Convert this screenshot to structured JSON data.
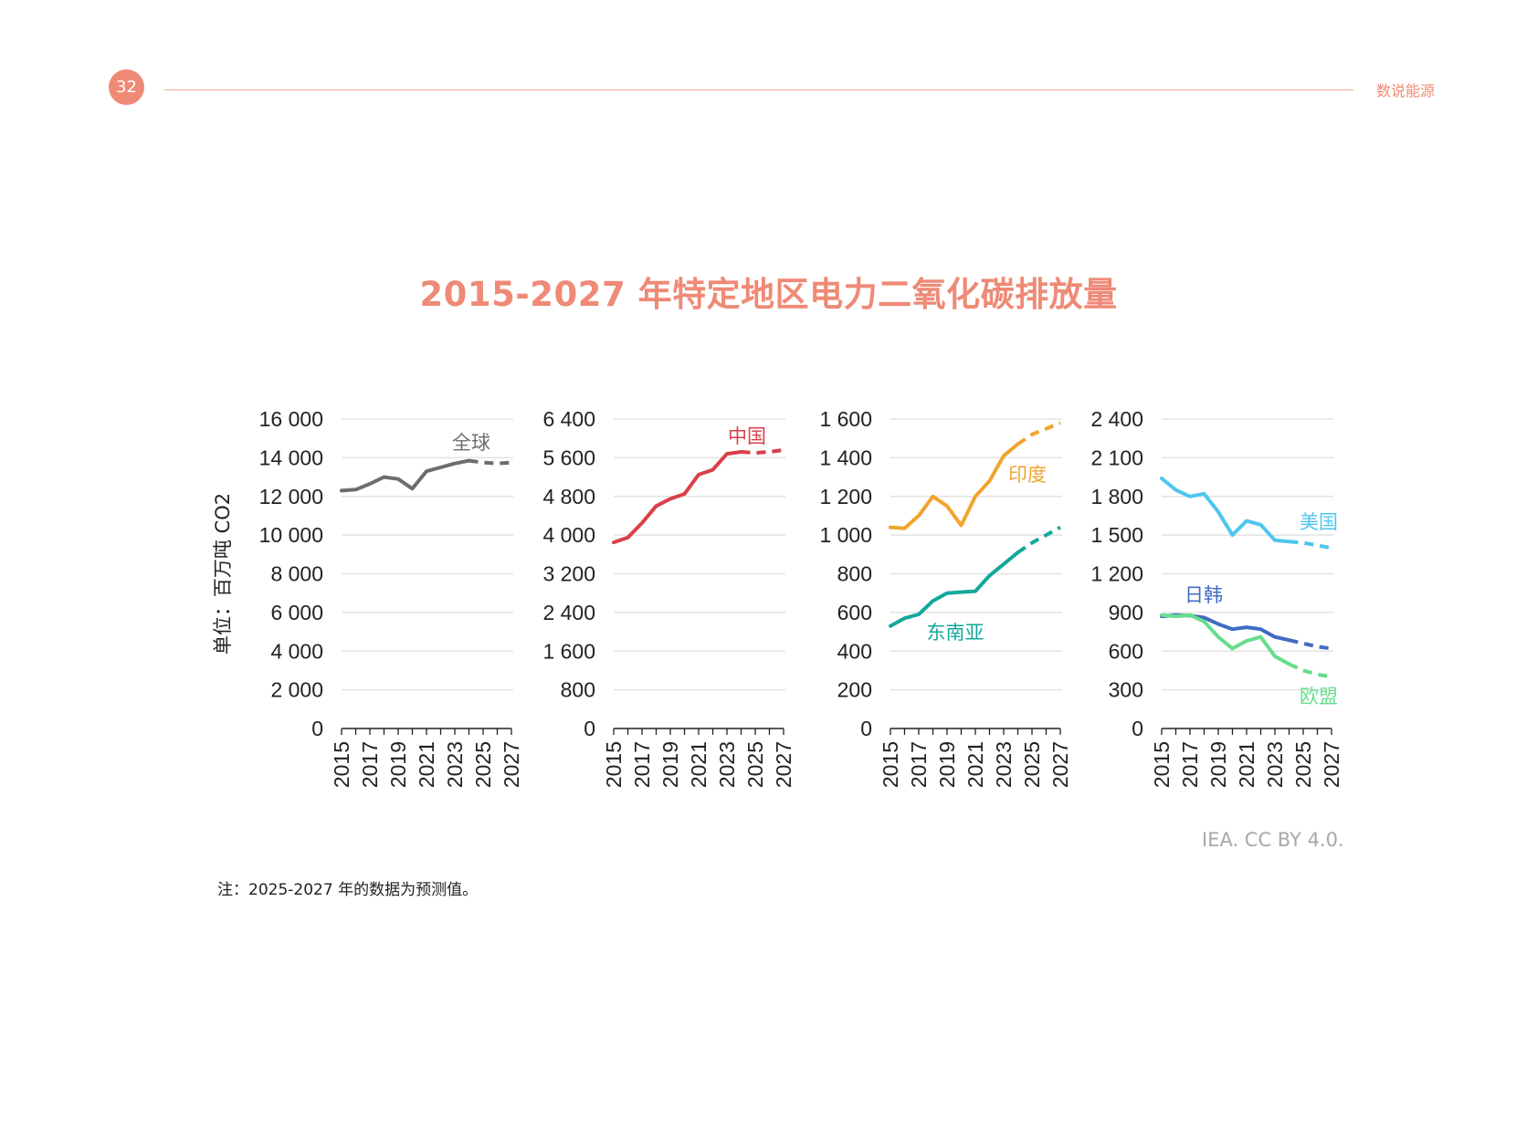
{
  "header": {
    "page_number": "32",
    "section": "数说能源"
  },
  "title": "2015-2027 年特定地区电力二氧化碳排放量",
  "credit": "IEA. CC BY 4.0.",
  "footnote": "注：2025-2027 年的数据为预测值。",
  "colors": {
    "accent": "#ee8a76",
    "global": "#6d6d6d",
    "china": "#d9404a",
    "india": "#f0a42c",
    "sea": "#13a89a",
    "usa": "#4fc6ee",
    "jpkr": "#3f6cc4",
    "eu": "#66de8c"
  },
  "chart_data": [
    {
      "type": "line",
      "ylabel": "单位：百万吨 CO2",
      "ylim": [
        0,
        16000
      ],
      "yticks": [
        0,
        2000,
        4000,
        6000,
        8000,
        10000,
        12000,
        14000,
        16000
      ],
      "ytick_labels": [
        "0",
        "2 000",
        "4 000",
        "6 000",
        "8 000",
        "10 000",
        "12 000",
        "14 000",
        "16 000"
      ],
      "x": [
        2015,
        2016,
        2017,
        2018,
        2019,
        2020,
        2021,
        2022,
        2023,
        2024,
        2025,
        2026,
        2027
      ],
      "xtick_labels": [
        "2015",
        "2017",
        "2019",
        "2021",
        "2023",
        "2025",
        "2027"
      ],
      "grid": true,
      "series": [
        {
          "name": "全球",
          "color": "#6d6d6d",
          "values": [
            12300,
            12350,
            12650,
            13000,
            12900,
            12400,
            13300,
            13500,
            13700,
            13850,
            13750,
            13700,
            13750
          ]
        }
      ]
    },
    {
      "type": "line",
      "ylim": [
        0,
        6400
      ],
      "yticks": [
        0,
        800,
        1600,
        2400,
        3200,
        4000,
        4800,
        5600,
        6400
      ],
      "ytick_labels": [
        "0",
        "800",
        "1 600",
        "2 400",
        "3 200",
        "4 000",
        "4 800",
        "5 600",
        "6 400"
      ],
      "x": [
        2015,
        2016,
        2017,
        2018,
        2019,
        2020,
        2021,
        2022,
        2023,
        2024,
        2025,
        2026,
        2027
      ],
      "xtick_labels": [
        "2015",
        "2017",
        "2019",
        "2021",
        "2023",
        "2025",
        "2027"
      ],
      "grid": true,
      "series": [
        {
          "name": "中国",
          "color": "#d9404a",
          "values": [
            3850,
            3950,
            4250,
            4600,
            4750,
            4850,
            5250,
            5350,
            5680,
            5720,
            5700,
            5720,
            5760
          ]
        }
      ]
    },
    {
      "type": "line",
      "ylim": [
        0,
        1600
      ],
      "yticks": [
        0,
        200,
        400,
        600,
        800,
        1000,
        1200,
        1400,
        1600
      ],
      "ytick_labels": [
        "0",
        "200",
        "400",
        "600",
        "800",
        "1 000",
        "1 200",
        "1 400",
        "1 600"
      ],
      "x": [
        2015,
        2016,
        2017,
        2018,
        2019,
        2020,
        2021,
        2022,
        2023,
        2024,
        2025,
        2026,
        2027
      ],
      "xtick_labels": [
        "2015",
        "2017",
        "2019",
        "2021",
        "2023",
        "2025",
        "2027"
      ],
      "grid": true,
      "series": [
        {
          "name": "印度",
          "color": "#f0a42c",
          "values": [
            1040,
            1035,
            1100,
            1200,
            1150,
            1050,
            1200,
            1280,
            1410,
            1470,
            1520,
            1550,
            1580
          ]
        },
        {
          "name": "东南亚",
          "color": "#13a89a",
          "values": [
            530,
            570,
            590,
            660,
            700,
            705,
            710,
            790,
            850,
            910,
            960,
            1000,
            1040
          ]
        }
      ]
    },
    {
      "type": "line",
      "ylim": [
        0,
        2400
      ],
      "yticks": [
        0,
        300,
        600,
        900,
        1200,
        1500,
        1800,
        2100,
        2400
      ],
      "ytick_labels": [
        "0",
        "300",
        "600",
        "900",
        "1 200",
        "1 500",
        "1 800",
        "2 100",
        "2 400"
      ],
      "x": [
        2015,
        2016,
        2017,
        2018,
        2019,
        2020,
        2021,
        2022,
        2023,
        2024,
        2025,
        2026,
        2027
      ],
      "xtick_labels": [
        "2015",
        "2017",
        "2019",
        "2021",
        "2023",
        "2025",
        "2027"
      ],
      "grid": true,
      "series": [
        {
          "name": "美国",
          "color": "#4fc6ee",
          "values": [
            1940,
            1850,
            1800,
            1820,
            1680,
            1500,
            1610,
            1580,
            1460,
            1450,
            1440,
            1420,
            1400
          ]
        },
        {
          "name": "日韩",
          "color": "#3f6cc4",
          "values": [
            870,
            880,
            875,
            860,
            810,
            770,
            785,
            770,
            710,
            685,
            660,
            635,
            620
          ]
        },
        {
          "name": "欧盟",
          "color": "#66de8c",
          "values": [
            880,
            870,
            880,
            830,
            710,
            620,
            680,
            710,
            560,
            500,
            450,
            420,
            400
          ]
        }
      ]
    }
  ]
}
